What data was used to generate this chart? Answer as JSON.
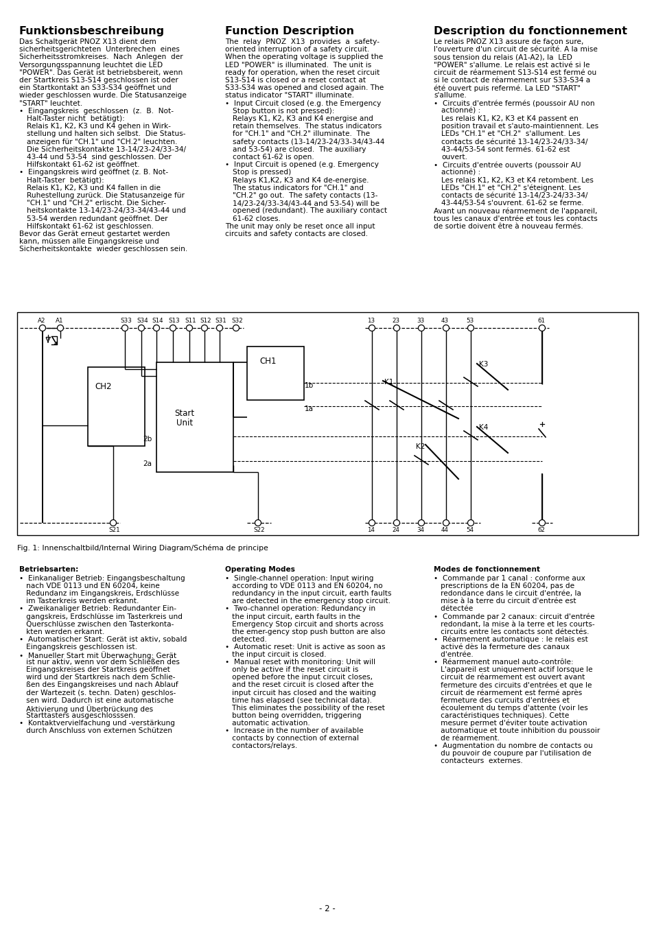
{
  "bg_color": "#ffffff",
  "title_col1": "Funktionsbeschreibung",
  "title_col2": "Function Description",
  "title_col3": "Description du fonctionnement",
  "col1_intro": [
    "Das Schaltgerät PNOZ X13 dient dem",
    "sicherheitsgerichteten  Unterbrechen  eines",
    "Sicherheitsstromkreises.  Nach  Anlegen  der",
    "Versorgungsspannung leuchtet die LED",
    "\"POWER\". Das Gerät ist betriebsbereit, wenn",
    "der Startkreis S13-S14 geschlossen ist oder",
    "ein Startkontakt an S33-S34 geöffnet und",
    "wieder geschlossen wurde. Die Statusanzeige",
    "\"START\" leuchtet."
  ],
  "col1_b1h": "Eingangskreis  geschlossen  (z.  B.  Not-",
  "col1_b1": [
    "Halt-Taster nicht  betätigt):",
    "Relais K1, K2, K3 und K4 gehen in Wirk-",
    "stellung und halten sich selbst.  Die Status-",
    "anzeigen für \"CH.1\" und \"CH.2\" leuchten.",
    "Die Sicherheitskontakte 13-14/23-24/33-34/",
    "43-44 und 53-54  sind geschlossen. Der",
    "Hilfskontakt 61-62 ist geöffnet."
  ],
  "col1_b2h": "Eingangskreis wird geöffnet (z. B. Not-",
  "col1_b2": [
    "Halt-Taster  betätigt):",
    "Relais K1, K2, K3 und K4 fallen in die",
    "Ruhestellung zurück. Die Statusanzeige für",
    "\"CH.1\" und \"CH.2\" erlischt. Die Sicher-",
    "heitskontakte 13-14/23-24/33-34/43-44 und",
    "53-54 werden redundant geöffnet. Der",
    "Hilfskontakt 61-62 ist geschlossen."
  ],
  "col1_end": [
    "Bevor das Gerät erneut gestartet werden",
    "kann, müssen alle Eingangskreise und",
    "Sicherheitskontakte  wieder geschlossen sein."
  ],
  "col2_intro": [
    "The  relay  PNOZ  X13  provides  a  safety-",
    "oriented interruption of a safety circuit.",
    "When the operating voltage is supplied the",
    "LED \"POWER\" is illuminated.  The unit is",
    "ready for operation, when the reset circuit",
    "S13-S14 is closed or a reset contact at",
    "S33-S34 was opened and closed again. The",
    "status indicator \"START\" illuminate."
  ],
  "col2_b1h": "Input Circuit closed (e.g. the Emergency",
  "col2_b1": [
    "Stop button is not pressed):",
    "Relays K1, K2, K3 and K4 energise and",
    "retain themselves.  The status indicators",
    "for \"CH.1\" and \"CH.2\" illuminate.  The",
    "safety contacts (13-14/23-24/33-34/43-44",
    "and 53-54) are closed.  The auxiliary",
    "contact 61-62 is open."
  ],
  "col2_b2h": "Input Circuit is opened (e.g. Emergency",
  "col2_b2": [
    "Stop is pressed)",
    "Relays K1,K2, K3 and K4 de-energise.",
    "The status indicators for \"CH.1\" and",
    "\"CH.2\" go out.  The safety contacts (13-",
    "14/23-24/33-34/43-44 and 53-54) will be",
    "opened (redundant). The auxiliary contact",
    "61-62 closes."
  ],
  "col2_end": [
    "The unit may only be reset once all input",
    "circuits and safety contacts are closed."
  ],
  "col3_intro": [
    "Le relais PNOZ X13 assure de façon sure,",
    "l'ouverture d'un circuit de sécurité. A la mise",
    "sous tension du relais (A1-A2), la  LED",
    "\"POWER\" s'allume. Le relais est activé si le",
    "circuit de réarmement S13-S14 est fermé ou",
    "si le contact de réarmement sur S33-S34 a",
    "été ouvert puis refermé. La LED \"START\"",
    "s'allume."
  ],
  "col3_b1h": "Circuits d'entrée fermés (poussoir AU non",
  "col3_b1": [
    "actionné) :",
    "Les relais K1, K2, K3 et K4 passent en",
    "position travail et s'auto-maintiennent. Les",
    "LEDs \"CH.1\" et \"CH.2\"  s'allument. Les",
    "contacts de sécurité 13-14/23-24/33-34/",
    "43-44/53-54 sont fermés. 61-62 est",
    "ouvert."
  ],
  "col3_b2h": "Circuits d'entrée ouverts (poussoir AU",
  "col3_b2": [
    "actionné) :",
    "Les relais K1, K2, K3 et K4 retombent. Les",
    "LEDs \"CH.1\" et \"CH.2\" s'éteignent. Les",
    "contacts de sécurité 13-14/23-24/33-34/",
    "43-44/53-54 s'ouvrent. 61-62 se ferme."
  ],
  "col3_end": [
    "Avant un nouveau réarmement de l'appareil,",
    "tous les canaux d'entrée et tous les contacts",
    "de sortie doivent être à nouveau fermés."
  ],
  "bot_col1_title": "Betriebsarten:",
  "bot_col1": [
    "•  Einkanaliger Betrieb: Eingangsbeschaltung",
    "   nach VDE 0113 und EN 60204, keine",
    "   Redundanz im Eingangskreis, Erdschlüsse",
    "   im Tasterkreis werden erkannt.",
    "•  Zweikanaliger Betrieb: Redundanter Ein-",
    "   gangskreis, Erdschlüsse im Tasterkreis und",
    "   Querschlüsse zwischen den Tasterkonta-",
    "   kten werden erkannt.",
    "•  Automatischer Start: Gerät ist aktiv, sobald",
    "   Eingangskreis geschlossen ist.",
    "•  Manueller Start mit Überwachung: Gerät",
    "   ist nur aktiv, wenn vor dem Schließen des",
    "   Eingangskreises der Startkreis geöffnet",
    "   wird und der Startkreis nach dem Schlie-",
    "   ßen des Eingangskreises und nach Ablauf",
    "   der Wartezeit (s. techn. Daten) geschlos-",
    "   sen wird. Dadurch ist eine automatische",
    "   Aktivierung und Überbrückung des",
    "   Starttasters ausgeschlosssen.",
    "•  Kontaktvervielfachung und -verstärkung",
    "   durch Anschluss von externen Schützen"
  ],
  "bot_col2_title": "Operating Modes",
  "bot_col2": [
    "•  Single-channel operation: Input wiring",
    "   according to VDE 0113 and EN 60204, no",
    "   redundancy in the input circuit, earth faults",
    "   are detected in the emergency stop circuit.",
    "•  Two-channel operation: Redundancy in",
    "   the input circuit, earth faults in the",
    "   Emergency Stop circuit and shorts across",
    "   the emer-gency stop push button are also",
    "   detected.",
    "•  Automatic reset: Unit is active as soon as",
    "   the input circuit is closed.",
    "•  Manual reset with monitoring: Unit will",
    "   only be active if the reset circuit is",
    "   opened before the input circuit closes,",
    "   and the reset circuit is closed after the",
    "   input circuit has closed and the waiting",
    "   time has elapsed (see technical data).",
    "   This eliminates the possibility of the reset",
    "   button being overridden, triggering",
    "   automatic activation.",
    "•  Increase in the number of available",
    "   contacts by connection of external",
    "   contactors/relays."
  ],
  "bot_col3_title": "Modes de fonctionnement",
  "bot_col3": [
    "•  Commande par 1 canal : conforme aux",
    "   prescriptions de la EN 60204, pas de",
    "   redondance dans le circuit d'entrée, la",
    "   mise à la terre du circuit d'entrée est",
    "   détectée",
    "•  Commande par 2 canaux: circuit d'entrée",
    "   redondant, la mise à la terre et les courts-",
    "   circuits entre les contacts sont détectés.",
    "•  Réarmement automatique : le relais est",
    "   activé dès la fermeture des canaux",
    "   d'entrée.",
    "•  Réarmement manuel auto-contrôle:",
    "   L'appareil est uniquement actif lorsque le",
    "   circuit de réarmement est ouvert avant",
    "   fermeture des circuits d'entrées et que le",
    "   circuit de réarmement est fermé après",
    "   fermeture des curcuits d'entrées et",
    "   écoulement du temps d'attente (voir les",
    "   caractéristiques techniques). Cette",
    "   mesure permet d'éviter toute activation",
    "   automatique et toute inhibition du poussoir",
    "   de réarmement.",
    "•  Augmentation du nombre de contacts ou",
    "   du pouvoir de coupure par l'utilisation de",
    "   contacteurs  externes."
  ],
  "fig_caption": "Fig. 1: Innenschaltbild/Internal Wiring Diagram/Schéma de principe",
  "page_number": "- 2 -"
}
